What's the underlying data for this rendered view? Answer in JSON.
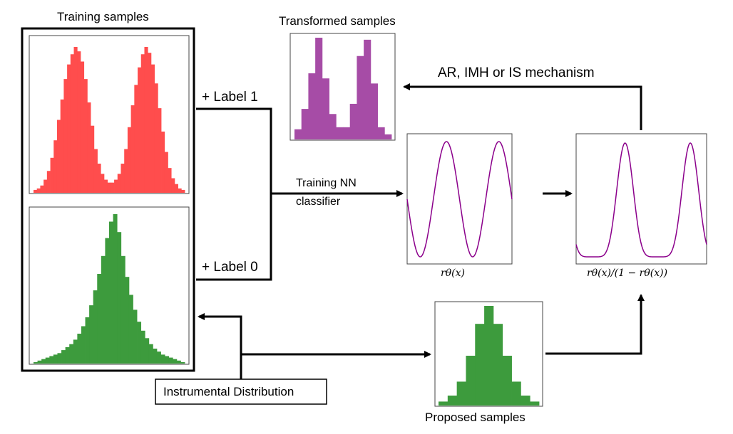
{
  "labels": {
    "training_samples": "Training samples",
    "transformed_samples": "Transformed samples",
    "label_1": "+ Label 1",
    "label_0": "+ Label 0",
    "training_nn_line1": "Training NN",
    "training_nn_line2": "classifier",
    "mechanism": "AR, IMH or IS mechanism",
    "r_theta": "rθ(x)",
    "ratio": "rθ(x)/(1 − rθ(x))",
    "instrumental": "Instrumental Distribution",
    "proposed_samples": "Proposed samples"
  },
  "colors": {
    "red_hist": "#ff4d4d",
    "green_hist": "#3d9b3d",
    "purple_hist": "#a64ca6",
    "purple_curve": "#8b008b",
    "line": "#000000"
  },
  "histograms": {
    "red": [
      0.02,
      0.03,
      0.05,
      0.09,
      0.15,
      0.24,
      0.36,
      0.5,
      0.64,
      0.78,
      0.88,
      0.95,
      1.0,
      0.97,
      0.9,
      0.78,
      0.62,
      0.46,
      0.3,
      0.2,
      0.13,
      0.09,
      0.07,
      0.07,
      0.09,
      0.13,
      0.2,
      0.3,
      0.45,
      0.6,
      0.74,
      0.86,
      0.95,
      1.0,
      0.96,
      0.88,
      0.75,
      0.58,
      0.42,
      0.28,
      0.17,
      0.1,
      0.06,
      0.03,
      0.02
    ],
    "green": [
      0.01,
      0.02,
      0.03,
      0.04,
      0.05,
      0.06,
      0.07,
      0.09,
      0.11,
      0.13,
      0.16,
      0.2,
      0.25,
      0.31,
      0.39,
      0.49,
      0.6,
      0.72,
      0.84,
      0.95,
      1.0,
      0.88,
      0.72,
      0.58,
      0.46,
      0.36,
      0.28,
      0.22,
      0.17,
      0.13,
      0.1,
      0.08,
      0.06,
      0.05,
      0.04,
      0.03,
      0.02,
      0.01
    ],
    "purple": [
      0.1,
      0.3,
      0.65,
      1.0,
      0.6,
      0.25,
      0.12,
      0.12,
      0.35,
      0.82,
      0.98,
      0.55,
      0.12,
      0.05
    ],
    "proposed": [
      0.04,
      0.1,
      0.24,
      0.5,
      0.82,
      1.0,
      0.82,
      0.5,
      0.24,
      0.1,
      0.04
    ]
  }
}
